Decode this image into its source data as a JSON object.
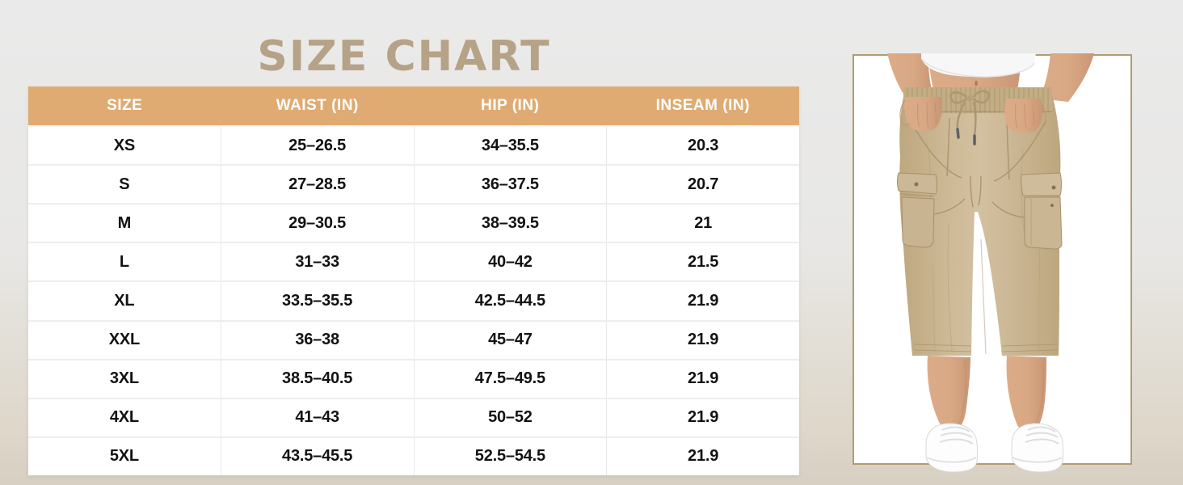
{
  "chart_data": {
    "type": "table",
    "title": "SIZE CHART",
    "columns": [
      "SIZE",
      "WAIST (IN)",
      "HIP (IN)",
      "INSEAM (IN)"
    ],
    "rows": [
      [
        "XS",
        "25–26.5",
        "34–35.5",
        "20.3"
      ],
      [
        "S",
        "27–28.5",
        "36–37.5",
        "20.7"
      ],
      [
        "M",
        "29–30.5",
        "38–39.5",
        "21"
      ],
      [
        "L",
        "31–33",
        "40–42",
        "21.5"
      ],
      [
        "XL",
        "33.5–35.5",
        "42.5–44.5",
        "21.9"
      ],
      [
        "XXL",
        "36–38",
        "45–47",
        "21.9"
      ],
      [
        "3XL",
        "38.5–40.5",
        "47.5–49.5",
        "21.9"
      ],
      [
        "4XL",
        "41–43",
        "50–52",
        "21.9"
      ],
      [
        "5XL",
        "43.5–45.5",
        "52.5–54.5",
        "21.9"
      ]
    ],
    "legend_position": "none",
    "grid": "light-gray-row-and-column-dividers"
  },
  "colors": {
    "title_color": "#b6a287",
    "header_bg": "#dfab72",
    "header_text": "#ffffff",
    "row_bg": "#ffffff",
    "cell_text": "#121212",
    "page_bg_top": "#eaeaea",
    "page_bg_bottom": "#d7d0c2",
    "photo_frame_border": "#b29b74",
    "pants_khaki": "#cab693"
  },
  "product_photo": {
    "alt": "Model wearing khaki cargo capri pants with ribbed drawstring waistband, white crop top and white sneakers, hands in pockets"
  }
}
